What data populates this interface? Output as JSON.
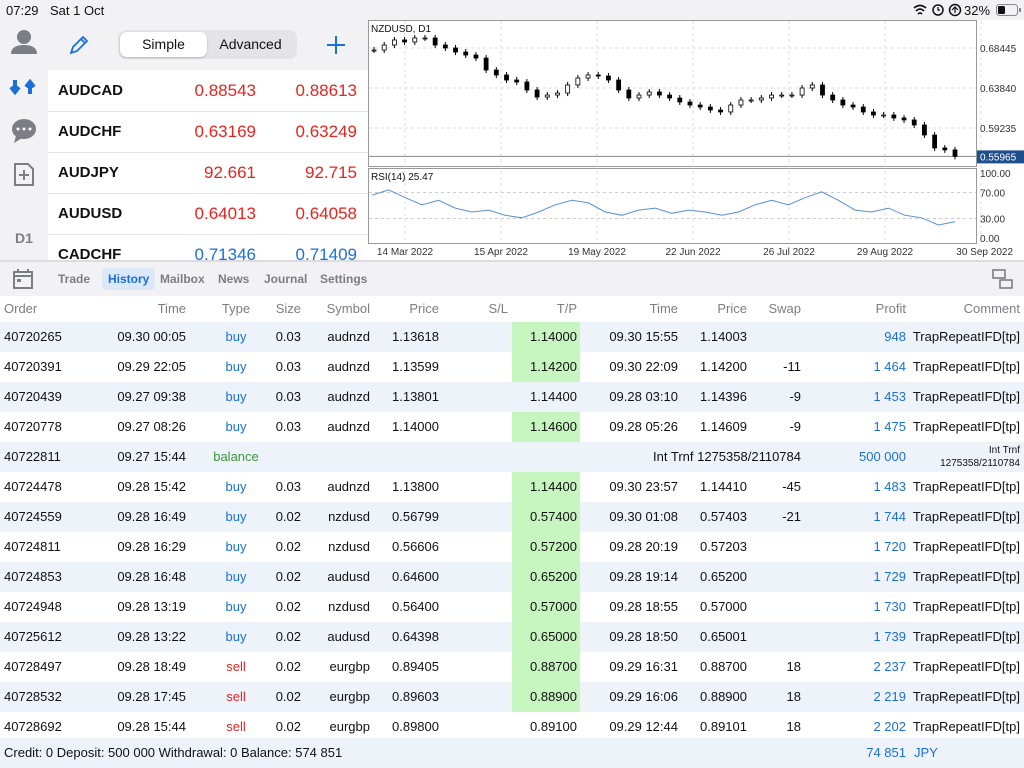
{
  "status_bar": {
    "time": "07:29",
    "date": "Sat 1 Oct",
    "battery": "32%"
  },
  "sidebar": {
    "timeframe": "D1"
  },
  "quotes": {
    "tabs": [
      "Simple",
      "Advanced"
    ],
    "active_tab": 0,
    "rows": [
      {
        "symbol": "AUDCAD",
        "bid": "0.88543",
        "ask": "0.88613",
        "color": "#e8231e"
      },
      {
        "symbol": "AUDCHF",
        "bid": "0.63169",
        "ask": "0.63249",
        "color": "#e8231e"
      },
      {
        "symbol": "AUDJPY",
        "bid": "92.661",
        "ask": "92.715",
        "color": "#e8231e"
      },
      {
        "symbol": "AUDUSD",
        "bid": "0.64013",
        "ask": "0.64058",
        "color": "#e8231e"
      },
      {
        "symbol": "CADCHF",
        "bid": "0.71346",
        "ask": "0.71409",
        "color": "#1a6fd8"
      }
    ]
  },
  "chart": {
    "title": "NZDUSD, D1",
    "ylim": [
      0.5578,
      0.7144
    ],
    "yticks": [
      0.68445,
      {
        "value": 0.6384,
        "label": "0.63840"
      },
      0.59235
    ],
    "last_price": 0.55965,
    "closes": [
      0.6821,
      0.6879,
      0.6937,
      0.6914,
      0.696,
      0.696,
      0.6879,
      0.6845,
      0.6798,
      0.6764,
      0.6729,
      0.6591,
      0.6534,
      0.6476,
      0.6453,
      0.6361,
      0.628,
      0.6303,
      0.6326,
      0.6419,
      0.6499,
      0.6534,
      0.6522,
      0.6476,
      0.6361,
      0.6269,
      0.6303,
      0.6338,
      0.6303,
      0.6269,
      0.6223,
      0.6188,
      0.6165,
      0.6131,
      0.6108,
      0.6188,
      0.6246,
      0.6246,
      0.6269,
      0.6303,
      0.6303,
      0.6303,
      0.6384,
      0.6419,
      0.6303,
      0.6246,
      0.6188,
      0.6165,
      0.6108,
      0.6073,
      0.6073,
      0.6039,
      0.6016,
      0.5958,
      0.5843,
      0.5694,
      0.5671,
      0.5597
    ],
    "indicator": {
      "title": "RSI(14) 25.47",
      "ylim": [
        0,
        100
      ],
      "yticks": [
        {
          "value": 100,
          "label": "100.00"
        },
        {
          "value": 70,
          "label": "70.00"
        },
        {
          "value": 30,
          "label": "30.00"
        },
        {
          "value": 0,
          "label": "0.00"
        }
      ],
      "values": [
        66,
        74,
        62,
        51,
        58,
        46,
        40,
        43,
        35,
        31,
        40,
        51,
        58,
        54,
        40,
        35,
        43,
        46,
        38,
        43,
        40,
        35,
        40,
        51,
        58,
        51,
        62,
        71,
        58,
        43,
        40,
        46,
        35,
        31,
        20,
        25
      ],
      "color": "#5b8fd6"
    },
    "xlabels": [
      "14 Mar 2022",
      "15 Apr 2022",
      "19 May 2022",
      "22 Jun 2022",
      "26 Jul 2022",
      "29 Aug 2022",
      "30 Sep 2022"
    ]
  },
  "tabs": {
    "items": [
      "Trade",
      "History",
      "Mailbox",
      "News",
      "Journal",
      "Settings"
    ],
    "active": 1
  },
  "table": {
    "columns": [
      "Order",
      "Time",
      "Type",
      "Size",
      "Symbol",
      "Price",
      "S/L",
      "T/P",
      "Time",
      "Price",
      "Swap",
      "Profit",
      "Comment"
    ],
    "rows": [
      {
        "order": "40720265",
        "time": "09.30 00:05",
        "type": "buy",
        "size": "0.03",
        "symbol": "audnzd",
        "price": "1.13618",
        "tp": "1.14000",
        "close_time": "09.30 15:55",
        "close_price": "1.14003",
        "profit": "948",
        "comment": "TrapRepeatIFD[tp]",
        "tp_hit": true
      },
      {
        "order": "40720391",
        "time": "09.29 22:05",
        "type": "buy",
        "size": "0.03",
        "symbol": "audnzd",
        "price": "1.13599",
        "tp": "1.14200",
        "close_time": "09.30 22:09",
        "close_price": "1.14200",
        "swap": "-11",
        "profit": "1 464",
        "comment": "TrapRepeatIFD[tp]",
        "tp_hit": true
      },
      {
        "order": "40720439",
        "time": "09.27 09:38",
        "type": "buy",
        "size": "0.03",
        "symbol": "audnzd",
        "price": "1.13801",
        "tp": "1.14400",
        "close_time": "09.28 03:10",
        "close_price": "1.14396",
        "swap": "-9",
        "profit": "1 453",
        "comment": "TrapRepeatIFD[tp]",
        "tp_hit": false
      },
      {
        "order": "40720778",
        "time": "09.27 08:26",
        "type": "buy",
        "size": "0.03",
        "symbol": "audnzd",
        "price": "1.14000",
        "tp": "1.14600",
        "close_time": "09.28 05:26",
        "close_price": "1.14609",
        "swap": "-9",
        "profit": "1 475",
        "comment": "TrapRepeatIFD[tp]",
        "tp_hit": true
      },
      {
        "order": "40722811",
        "time": "09.27 15:44",
        "type": "balance",
        "note": "Int Trnf 1275358/2110784",
        "profit": "500 000",
        "comment": "Int Trnf 1275358/2110784",
        "tp_hit": false
      },
      {
        "order": "40724478",
        "time": "09.28 15:42",
        "type": "buy",
        "size": "0.03",
        "symbol": "audnzd",
        "price": "1.13800",
        "tp": "1.14400",
        "close_time": "09.30 23:57",
        "close_price": "1.14410",
        "swap": "-45",
        "profit": "1 483",
        "comment": "TrapRepeatIFD[tp]",
        "tp_hit": true
      },
      {
        "order": "40724559",
        "time": "09.28 16:49",
        "type": "buy",
        "size": "0.02",
        "symbol": "nzdusd",
        "price": "0.56799",
        "tp": "0.57400",
        "close_time": "09.30 01:08",
        "close_price": "0.57403",
        "swap": "-21",
        "profit": "1 744",
        "comment": "TrapRepeatIFD[tp]",
        "tp_hit": true
      },
      {
        "order": "40724811",
        "time": "09.28 16:29",
        "type": "buy",
        "size": "0.02",
        "symbol": "nzdusd",
        "price": "0.56606",
        "tp": "0.57200",
        "close_time": "09.28 20:19",
        "close_price": "0.57203",
        "profit": "1 720",
        "comment": "TrapRepeatIFD[tp]",
        "tp_hit": true
      },
      {
        "order": "40724853",
        "time": "09.28 16:48",
        "type": "buy",
        "size": "0.02",
        "symbol": "audusd",
        "price": "0.64600",
        "tp": "0.65200",
        "close_time": "09.28 19:14",
        "close_price": "0.65200",
        "profit": "1 729",
        "comment": "TrapRepeatIFD[tp]",
        "tp_hit": true
      },
      {
        "order": "40724948",
        "time": "09.28 13:19",
        "type": "buy",
        "size": "0.02",
        "symbol": "nzdusd",
        "price": "0.56400",
        "tp": "0.57000",
        "close_time": "09.28 18:55",
        "close_price": "0.57000",
        "profit": "1 730",
        "comment": "TrapRepeatIFD[tp]",
        "tp_hit": true
      },
      {
        "order": "40725612",
        "time": "09.28 13:22",
        "type": "buy",
        "size": "0.02",
        "symbol": "audusd",
        "price": "0.64398",
        "tp": "0.65000",
        "close_time": "09.28 18:50",
        "close_price": "0.65001",
        "profit": "1 739",
        "comment": "TrapRepeatIFD[tp]",
        "tp_hit": true
      },
      {
        "order": "40728497",
        "time": "09.28 18:49",
        "type": "sell",
        "size": "0.02",
        "symbol": "eurgbp",
        "price": "0.89405",
        "tp": "0.88700",
        "close_time": "09.29 16:31",
        "close_price": "0.88700",
        "swap": "18",
        "profit": "2 237",
        "comment": "TrapRepeatIFD[tp]",
        "tp_hit": true
      },
      {
        "order": "40728532",
        "time": "09.28 17:45",
        "type": "sell",
        "size": "0.02",
        "symbol": "eurgbp",
        "price": "0.89603",
        "tp": "0.88900",
        "close_time": "09.29 16:06",
        "close_price": "0.88900",
        "swap": "18",
        "profit": "2 219",
        "comment": "TrapRepeatIFD[tp]",
        "tp_hit": true
      },
      {
        "order": "40728692",
        "time": "09.28 15:44",
        "type": "sell",
        "size": "0.02",
        "symbol": "eurgbp",
        "price": "0.89800",
        "tp": "0.89100",
        "close_time": "09.29 12:44",
        "close_price": "0.89101",
        "swap": "18",
        "profit": "2 202",
        "comment": "TrapRepeatIFD[tp]",
        "tp_hit": false
      }
    ]
  },
  "footer": {
    "summary": "Credit: 0 Deposit: 500 000 Withdrawal: 0 Balance: 574 851",
    "profit": "74 851",
    "currency": "JPY"
  }
}
